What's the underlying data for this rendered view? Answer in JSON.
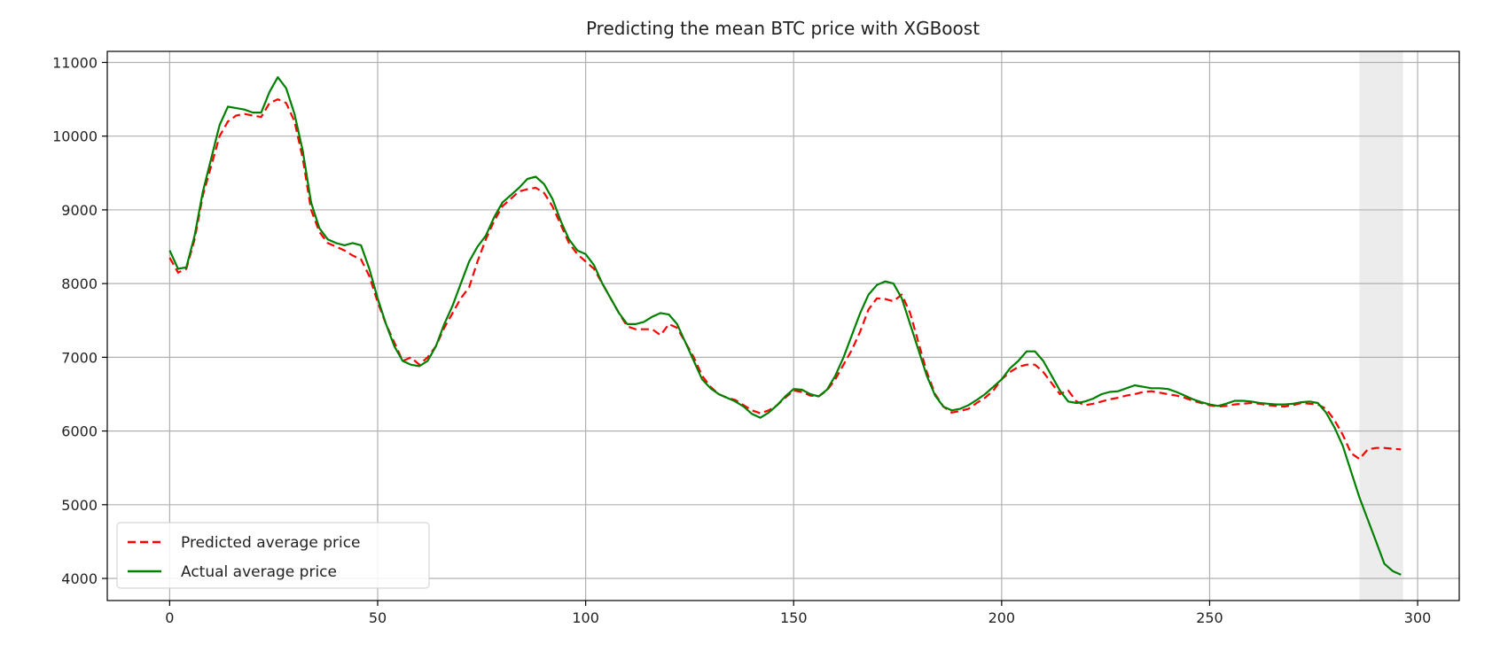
{
  "chart_data": {
    "type": "line",
    "title": "Predicting the mean BTC price with XGBoost",
    "xlabel": "",
    "ylabel": "",
    "xlim": [
      -15,
      310
    ],
    "ylim": [
      3700,
      11150
    ],
    "x_ticks": [
      0,
      50,
      100,
      150,
      200,
      250,
      300
    ],
    "y_ticks": [
      4000,
      5000,
      6000,
      7000,
      8000,
      9000,
      10000,
      11000
    ],
    "grid": true,
    "legend_position": "lower-left",
    "highlight_region": {
      "x_start": 286,
      "x_end": 296.5,
      "color": "#ececec"
    },
    "series": [
      {
        "name": "Predicted average price",
        "style": "dashed",
        "color": "#ff0000",
        "points": [
          [
            0,
            8350
          ],
          [
            2,
            8150
          ],
          [
            4,
            8200
          ],
          [
            6,
            8600
          ],
          [
            8,
            9200
          ],
          [
            10,
            9600
          ],
          [
            12,
            10000
          ],
          [
            14,
            10200
          ],
          [
            16,
            10280
          ],
          [
            18,
            10300
          ],
          [
            20,
            10280
          ],
          [
            22,
            10260
          ],
          [
            24,
            10450
          ],
          [
            26,
            10500
          ],
          [
            28,
            10450
          ],
          [
            30,
            10200
          ],
          [
            32,
            9700
          ],
          [
            34,
            9000
          ],
          [
            36,
            8700
          ],
          [
            38,
            8550
          ],
          [
            40,
            8500
          ],
          [
            42,
            8450
          ],
          [
            44,
            8380
          ],
          [
            46,
            8330
          ],
          [
            48,
            8100
          ],
          [
            50,
            7750
          ],
          [
            52,
            7450
          ],
          [
            54,
            7200
          ],
          [
            56,
            6950
          ],
          [
            58,
            7000
          ],
          [
            60,
            6900
          ],
          [
            62,
            7000
          ],
          [
            64,
            7150
          ],
          [
            66,
            7400
          ],
          [
            68,
            7600
          ],
          [
            70,
            7800
          ],
          [
            72,
            7950
          ],
          [
            74,
            8300
          ],
          [
            76,
            8600
          ],
          [
            78,
            8850
          ],
          [
            80,
            9050
          ],
          [
            82,
            9150
          ],
          [
            84,
            9250
          ],
          [
            86,
            9280
          ],
          [
            88,
            9300
          ],
          [
            90,
            9230
          ],
          [
            92,
            9050
          ],
          [
            94,
            8800
          ],
          [
            96,
            8550
          ],
          [
            98,
            8400
          ],
          [
            100,
            8300
          ],
          [
            102,
            8200
          ],
          [
            104,
            8000
          ],
          [
            106,
            7800
          ],
          [
            108,
            7600
          ],
          [
            110,
            7420
          ],
          [
            112,
            7380
          ],
          [
            114,
            7380
          ],
          [
            116,
            7380
          ],
          [
            118,
            7300
          ],
          [
            120,
            7450
          ],
          [
            122,
            7400
          ],
          [
            124,
            7200
          ],
          [
            126,
            7000
          ],
          [
            128,
            6750
          ],
          [
            130,
            6600
          ],
          [
            132,
            6500
          ],
          [
            134,
            6450
          ],
          [
            136,
            6420
          ],
          [
            138,
            6350
          ],
          [
            140,
            6280
          ],
          [
            142,
            6240
          ],
          [
            144,
            6280
          ],
          [
            146,
            6350
          ],
          [
            148,
            6450
          ],
          [
            150,
            6550
          ],
          [
            152,
            6530
          ],
          [
            154,
            6480
          ],
          [
            156,
            6470
          ],
          [
            158,
            6550
          ],
          [
            160,
            6700
          ],
          [
            162,
            6900
          ],
          [
            164,
            7100
          ],
          [
            166,
            7350
          ],
          [
            168,
            7650
          ],
          [
            170,
            7800
          ],
          [
            172,
            7790
          ],
          [
            174,
            7760
          ],
          [
            176,
            7850
          ],
          [
            178,
            7600
          ],
          [
            180,
            7200
          ],
          [
            182,
            6800
          ],
          [
            184,
            6500
          ],
          [
            186,
            6330
          ],
          [
            188,
            6250
          ],
          [
            190,
            6270
          ],
          [
            192,
            6300
          ],
          [
            194,
            6380
          ],
          [
            196,
            6450
          ],
          [
            198,
            6550
          ],
          [
            200,
            6700
          ],
          [
            202,
            6800
          ],
          [
            204,
            6870
          ],
          [
            206,
            6900
          ],
          [
            208,
            6900
          ],
          [
            210,
            6800
          ],
          [
            212,
            6650
          ],
          [
            214,
            6500
          ],
          [
            216,
            6550
          ],
          [
            218,
            6400
          ],
          [
            220,
            6350
          ],
          [
            222,
            6370
          ],
          [
            224,
            6400
          ],
          [
            226,
            6430
          ],
          [
            228,
            6450
          ],
          [
            230,
            6480
          ],
          [
            232,
            6500
          ],
          [
            234,
            6530
          ],
          [
            236,
            6540
          ],
          [
            238,
            6520
          ],
          [
            240,
            6500
          ],
          [
            242,
            6480
          ],
          [
            244,
            6450
          ],
          [
            246,
            6410
          ],
          [
            248,
            6380
          ],
          [
            250,
            6350
          ],
          [
            252,
            6330
          ],
          [
            254,
            6340
          ],
          [
            256,
            6360
          ],
          [
            258,
            6370
          ],
          [
            260,
            6380
          ],
          [
            262,
            6370
          ],
          [
            264,
            6350
          ],
          [
            266,
            6340
          ],
          [
            268,
            6330
          ],
          [
            270,
            6350
          ],
          [
            272,
            6380
          ],
          [
            274,
            6370
          ],
          [
            276,
            6360
          ],
          [
            278,
            6300
          ],
          [
            280,
            6150
          ],
          [
            282,
            5950
          ],
          [
            284,
            5700
          ],
          [
            286,
            5620
          ],
          [
            288,
            5750
          ],
          [
            290,
            5770
          ],
          [
            292,
            5770
          ],
          [
            294,
            5760
          ],
          [
            296,
            5750
          ]
        ]
      },
      {
        "name": "Actual average price",
        "style": "solid",
        "color": "#008000",
        "points": [
          [
            0,
            8450
          ],
          [
            2,
            8200
          ],
          [
            4,
            8220
          ],
          [
            6,
            8650
          ],
          [
            8,
            9250
          ],
          [
            10,
            9700
          ],
          [
            12,
            10150
          ],
          [
            14,
            10400
          ],
          [
            16,
            10380
          ],
          [
            18,
            10360
          ],
          [
            20,
            10320
          ],
          [
            22,
            10320
          ],
          [
            24,
            10600
          ],
          [
            26,
            10800
          ],
          [
            28,
            10650
          ],
          [
            30,
            10300
          ],
          [
            32,
            9800
          ],
          [
            34,
            9100
          ],
          [
            36,
            8750
          ],
          [
            38,
            8600
          ],
          [
            40,
            8550
          ],
          [
            42,
            8520
          ],
          [
            44,
            8550
          ],
          [
            46,
            8520
          ],
          [
            48,
            8200
          ],
          [
            50,
            7800
          ],
          [
            52,
            7450
          ],
          [
            54,
            7150
          ],
          [
            56,
            6950
          ],
          [
            58,
            6900
          ],
          [
            60,
            6880
          ],
          [
            62,
            6950
          ],
          [
            64,
            7150
          ],
          [
            66,
            7450
          ],
          [
            68,
            7700
          ],
          [
            70,
            8000
          ],
          [
            72,
            8300
          ],
          [
            74,
            8500
          ],
          [
            76,
            8650
          ],
          [
            78,
            8900
          ],
          [
            80,
            9100
          ],
          [
            82,
            9200
          ],
          [
            84,
            9300
          ],
          [
            86,
            9420
          ],
          [
            88,
            9450
          ],
          [
            90,
            9350
          ],
          [
            92,
            9150
          ],
          [
            94,
            8850
          ],
          [
            96,
            8600
          ],
          [
            98,
            8450
          ],
          [
            100,
            8400
          ],
          [
            102,
            8250
          ],
          [
            104,
            8000
          ],
          [
            106,
            7800
          ],
          [
            108,
            7600
          ],
          [
            110,
            7450
          ],
          [
            112,
            7450
          ],
          [
            114,
            7480
          ],
          [
            116,
            7550
          ],
          [
            118,
            7600
          ],
          [
            120,
            7580
          ],
          [
            122,
            7450
          ],
          [
            124,
            7200
          ],
          [
            126,
            6950
          ],
          [
            128,
            6700
          ],
          [
            130,
            6580
          ],
          [
            132,
            6500
          ],
          [
            134,
            6450
          ],
          [
            136,
            6400
          ],
          [
            138,
            6330
          ],
          [
            140,
            6230
          ],
          [
            142,
            6180
          ],
          [
            144,
            6250
          ],
          [
            146,
            6350
          ],
          [
            148,
            6470
          ],
          [
            150,
            6570
          ],
          [
            152,
            6560
          ],
          [
            154,
            6500
          ],
          [
            156,
            6470
          ],
          [
            158,
            6560
          ],
          [
            160,
            6750
          ],
          [
            162,
            7000
          ],
          [
            164,
            7300
          ],
          [
            166,
            7600
          ],
          [
            168,
            7850
          ],
          [
            170,
            7980
          ],
          [
            172,
            8030
          ],
          [
            174,
            8000
          ],
          [
            176,
            7800
          ],
          [
            178,
            7450
          ],
          [
            180,
            7100
          ],
          [
            182,
            6750
          ],
          [
            184,
            6480
          ],
          [
            186,
            6330
          ],
          [
            188,
            6280
          ],
          [
            190,
            6300
          ],
          [
            192,
            6350
          ],
          [
            194,
            6420
          ],
          [
            196,
            6500
          ],
          [
            198,
            6600
          ],
          [
            200,
            6700
          ],
          [
            202,
            6850
          ],
          [
            204,
            6950
          ],
          [
            206,
            7080
          ],
          [
            208,
            7080
          ],
          [
            210,
            6950
          ],
          [
            212,
            6750
          ],
          [
            214,
            6550
          ],
          [
            216,
            6400
          ],
          [
            218,
            6380
          ],
          [
            220,
            6400
          ],
          [
            222,
            6440
          ],
          [
            224,
            6500
          ],
          [
            226,
            6530
          ],
          [
            228,
            6540
          ],
          [
            230,
            6580
          ],
          [
            232,
            6620
          ],
          [
            234,
            6600
          ],
          [
            236,
            6580
          ],
          [
            238,
            6580
          ],
          [
            240,
            6570
          ],
          [
            242,
            6530
          ],
          [
            244,
            6480
          ],
          [
            246,
            6430
          ],
          [
            248,
            6390
          ],
          [
            250,
            6360
          ],
          [
            252,
            6340
          ],
          [
            254,
            6370
          ],
          [
            256,
            6410
          ],
          [
            258,
            6410
          ],
          [
            260,
            6400
          ],
          [
            262,
            6380
          ],
          [
            264,
            6370
          ],
          [
            266,
            6360
          ],
          [
            268,
            6360
          ],
          [
            270,
            6370
          ],
          [
            272,
            6390
          ],
          [
            274,
            6400
          ],
          [
            276,
            6380
          ],
          [
            278,
            6250
          ],
          [
            280,
            6050
          ],
          [
            282,
            5800
          ],
          [
            284,
            5450
          ],
          [
            286,
            5100
          ],
          [
            288,
            4800
          ],
          [
            290,
            4500
          ],
          [
            292,
            4200
          ],
          [
            294,
            4100
          ],
          [
            296,
            4050
          ]
        ]
      }
    ]
  }
}
